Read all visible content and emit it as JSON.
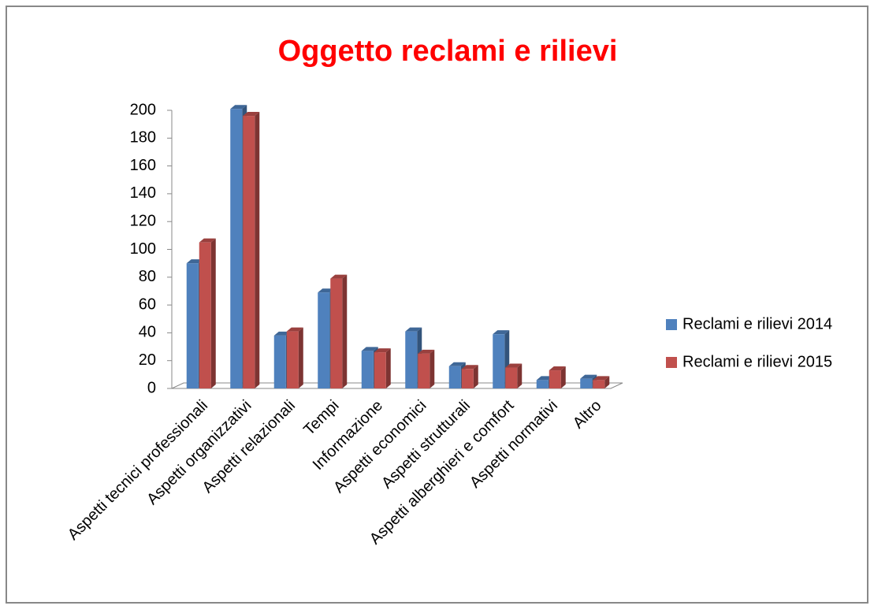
{
  "chart_data": {
    "type": "bar3d",
    "title": "Oggetto reclami e rilievi",
    "categories": [
      "Aspetti tecnici professionali",
      "Aspetti organizzativi",
      "Aspetti relazionali",
      "Tempi",
      "Informazione",
      "Aspetti economici",
      "Aspetti strutturali",
      "Aspetti alberghieri e comfort",
      "Aspetti normativi",
      "Altro"
    ],
    "series": [
      {
        "name": "Reclami e rilievi 2014",
        "color": "#4f81bd",
        "values": [
          90,
          201,
          38,
          69,
          27,
          41,
          16,
          39,
          6,
          7
        ]
      },
      {
        "name": "Reclami e rilievi 2015",
        "color": "#c0504d",
        "values": [
          105,
          196,
          41,
          79,
          26,
          25,
          14,
          15,
          13,
          6
        ]
      }
    ],
    "ylim": [
      0,
      200
    ],
    "yticks": [
      0,
      20,
      40,
      60,
      80,
      100,
      120,
      140,
      160,
      180,
      200
    ],
    "legend": "right"
  }
}
